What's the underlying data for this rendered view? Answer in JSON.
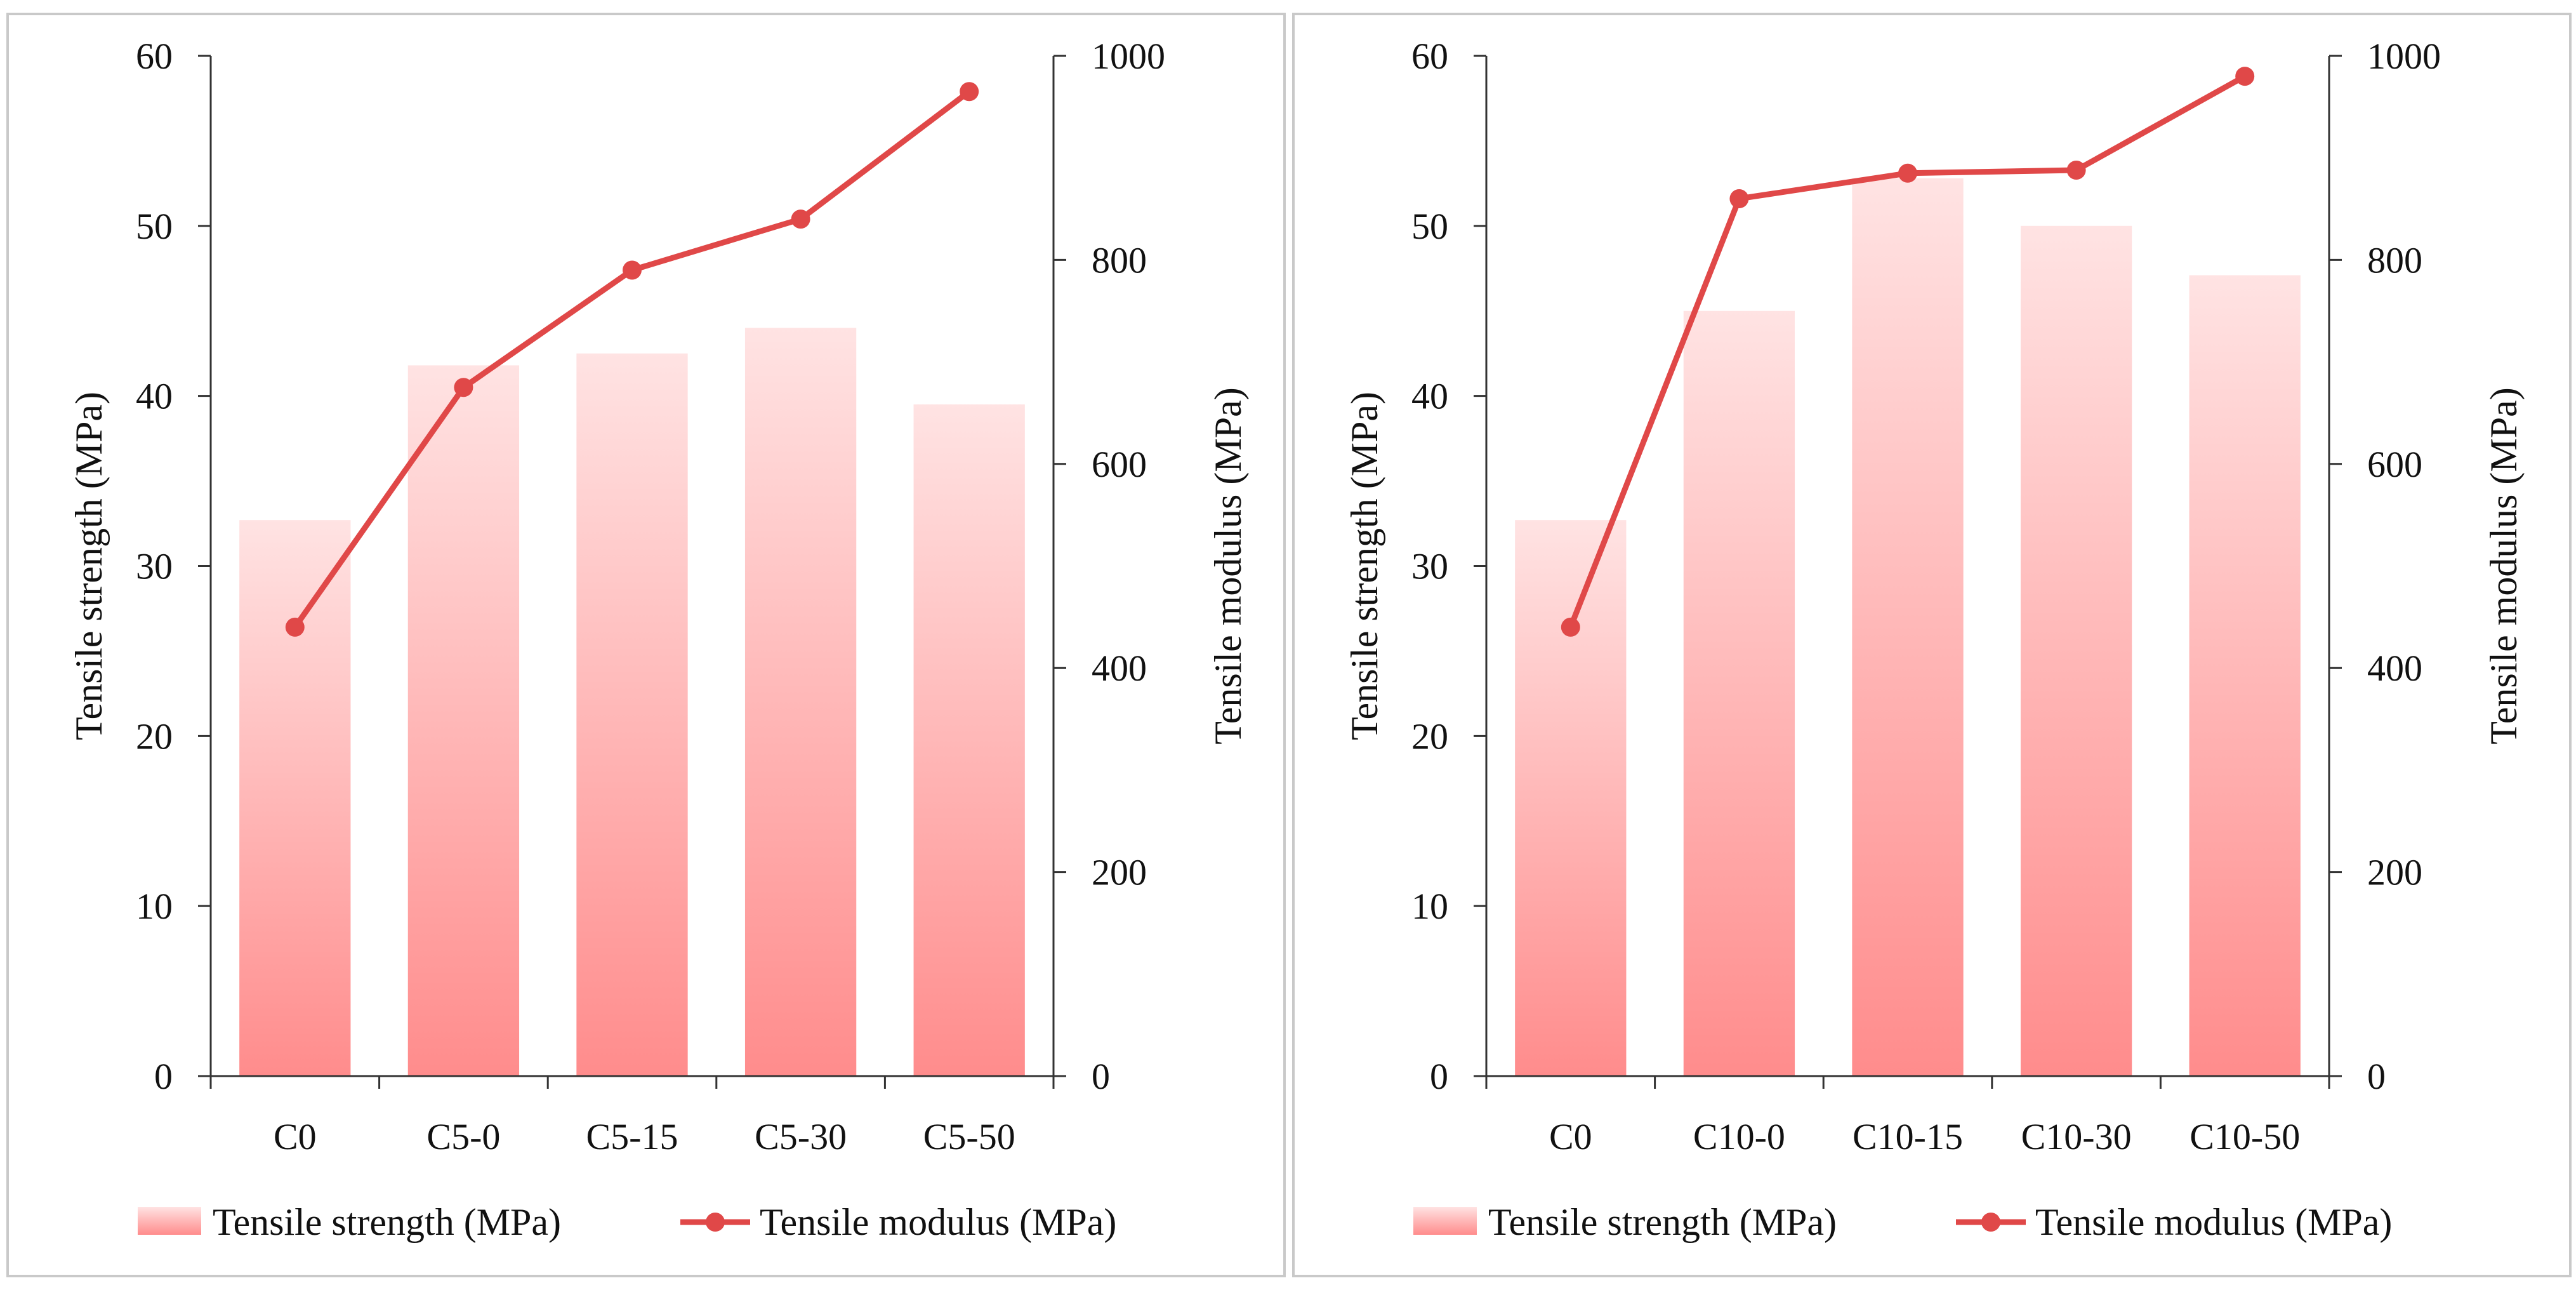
{
  "colors": {
    "bar_top": "#ffe3e3",
    "bar_bottom": "#ff8c8c",
    "line": "#e04848",
    "axis": "#333333",
    "frame": "#c9c9c9"
  },
  "legend": {
    "bar_label": "Tensile strength (MPa)",
    "line_label": "Tensile modulus (MPa)"
  },
  "chart_data": [
    {
      "type": "bar+line",
      "panel": "left",
      "categories": [
        "C0",
        "C5-0",
        "C5-15",
        "C5-30",
        "C5-50"
      ],
      "series": [
        {
          "name": "Tensile strength (MPa)",
          "type": "bar",
          "axis": "left",
          "values": [
            32.7,
            41.8,
            42.5,
            44.0,
            39.5
          ]
        },
        {
          "name": "Tensile modulus (MPa)",
          "type": "line",
          "axis": "right",
          "values": [
            440,
            675,
            790,
            840,
            965
          ]
        }
      ],
      "ylabel": "Tensile strength (MPa)",
      "y2label": "Tensile modulus (MPa)",
      "ylim": [
        0,
        60
      ],
      "y2lim": [
        0,
        1000
      ],
      "yticks": [
        "0",
        "10",
        "20",
        "30",
        "40",
        "50",
        "60"
      ],
      "y2ticks": [
        "0",
        "200",
        "400",
        "600",
        "800",
        "1000"
      ],
      "grid": false,
      "legend_position": "bottom"
    },
    {
      "type": "bar+line",
      "panel": "right",
      "categories": [
        "C0",
        "C10-0",
        "C10-15",
        "C10-30",
        "C10-50"
      ],
      "series": [
        {
          "name": "Tensile strength (MPa)",
          "type": "bar",
          "axis": "left",
          "values": [
            32.7,
            45.0,
            52.8,
            50.0,
            47.1
          ]
        },
        {
          "name": "Tensile modulus (MPa)",
          "type": "line",
          "axis": "right",
          "values": [
            440,
            860,
            885,
            888,
            980
          ]
        }
      ],
      "ylabel": "Tensile strength (MPa)",
      "y2label": "Tensile modulus (MPa)",
      "ylim": [
        0,
        60
      ],
      "y2lim": [
        0,
        1000
      ],
      "yticks": [
        "0",
        "10",
        "20",
        "30",
        "40",
        "50",
        "60"
      ],
      "y2ticks": [
        "0",
        "200",
        "400",
        "600",
        "800",
        "1000"
      ],
      "grid": false,
      "legend_position": "bottom"
    }
  ]
}
